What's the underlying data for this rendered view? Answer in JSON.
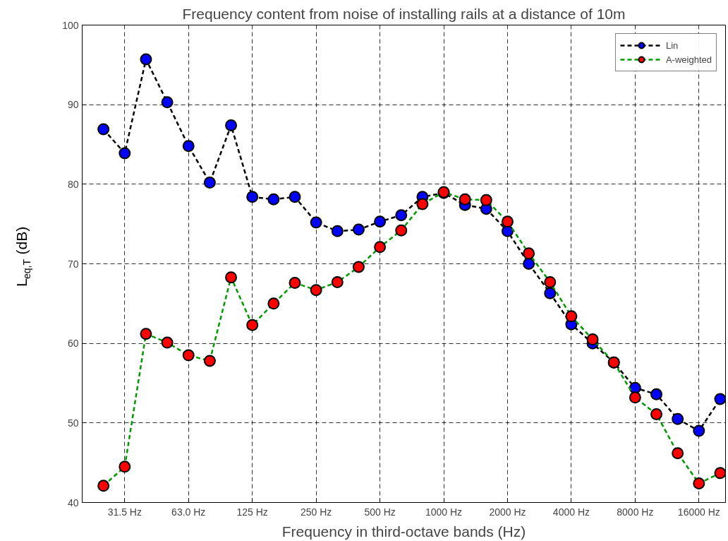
{
  "chart_data": {
    "type": "line",
    "title": "Frequency content from noise of installing rails at a distance of 10m",
    "xlabel": "Frequency in third-octave bands (Hz)",
    "ylabel": "L$_{eq,T}$ (dB)",
    "categories": [
      null,
      "31.5 Hz",
      null,
      null,
      "63.0 Hz",
      null,
      null,
      "125 Hz",
      null,
      null,
      "250 Hz",
      null,
      null,
      "500 Hz",
      null,
      null,
      "1000 Hz",
      null,
      null,
      "2000 Hz",
      null,
      null,
      "4000 Hz",
      null,
      null,
      "8000 Hz",
      null,
      null,
      "16000 Hz",
      null
    ],
    "series": [
      {
        "name": "Lin",
        "color": "#000000",
        "colors": [
          "#0000ff",
          "#0000ff",
          "#0000ff",
          "#0000ff",
          "#0000ff",
          "#0000ff",
          "#0000ff",
          "#0000ff",
          "#0000ff",
          "#0000ff",
          "#0000ff",
          "#0000ff",
          "#0000ff",
          "#0000ff",
          "#0000ff",
          "#0000ff",
          "#0000ff",
          "#0000ff",
          "#0000ff",
          "#0000ff",
          "#0000ff",
          "#0000ff",
          "#0000ff",
          "#0000ff",
          "#0000ff",
          "#0000ff",
          "#0000ff",
          "#0000ff",
          "#0000ff",
          "#0000ff"
        ],
        "values": [
          86.9,
          83.9,
          95.7,
          90.3,
          84.8,
          80.2,
          87.4,
          78.4,
          78.1,
          78.4,
          75.2,
          74.1,
          74.3,
          75.3,
          76.1,
          78.4,
          78.9,
          77.4,
          76.9,
          74.1,
          70.0,
          66.3,
          62.4,
          60.0,
          57.6,
          54.4,
          53.6,
          50.5,
          49.0,
          53.0
        ]
      },
      {
        "name": "A-weighted",
        "color": "#009900",
        "colors": [
          "#ff0000",
          "#ff0000",
          "#ff0000",
          "#ff0000",
          "#ff0000",
          "#ff0000",
          "#ff0000",
          "#ff0000",
          "#ff0000",
          "#ff0000",
          "#ff0000",
          "#ff0000",
          "#ff0000",
          "#ff0000",
          "#ff0000",
          "#ff0000",
          "#ff0000",
          "#ff0000",
          "#ff0000",
          "#ff0000",
          "#ff0000",
          "#ff0000",
          "#ff0000",
          "#ff0000",
          "#ff0000",
          "#ff0000",
          "#ff0000",
          "#ff0000",
          "#ff0000",
          "#ff0000"
        ],
        "values": [
          42.1,
          44.5,
          61.2,
          60.1,
          58.5,
          57.8,
          68.3,
          62.3,
          65.0,
          67.6,
          66.7,
          67.7,
          69.6,
          72.1,
          74.2,
          77.5,
          79.0,
          78.1,
          78.0,
          75.3,
          71.3,
          67.7,
          63.4,
          60.5,
          57.6,
          53.2,
          51.1,
          46.2,
          42.4,
          43.7
        ]
      }
    ],
    "ylim": [
      40,
      100
    ],
    "yticks": [
      40,
      50,
      60,
      70,
      80,
      90,
      100
    ],
    "grid": true,
    "legend": "top right",
    "marker": "circle",
    "line_style": "dashed"
  }
}
